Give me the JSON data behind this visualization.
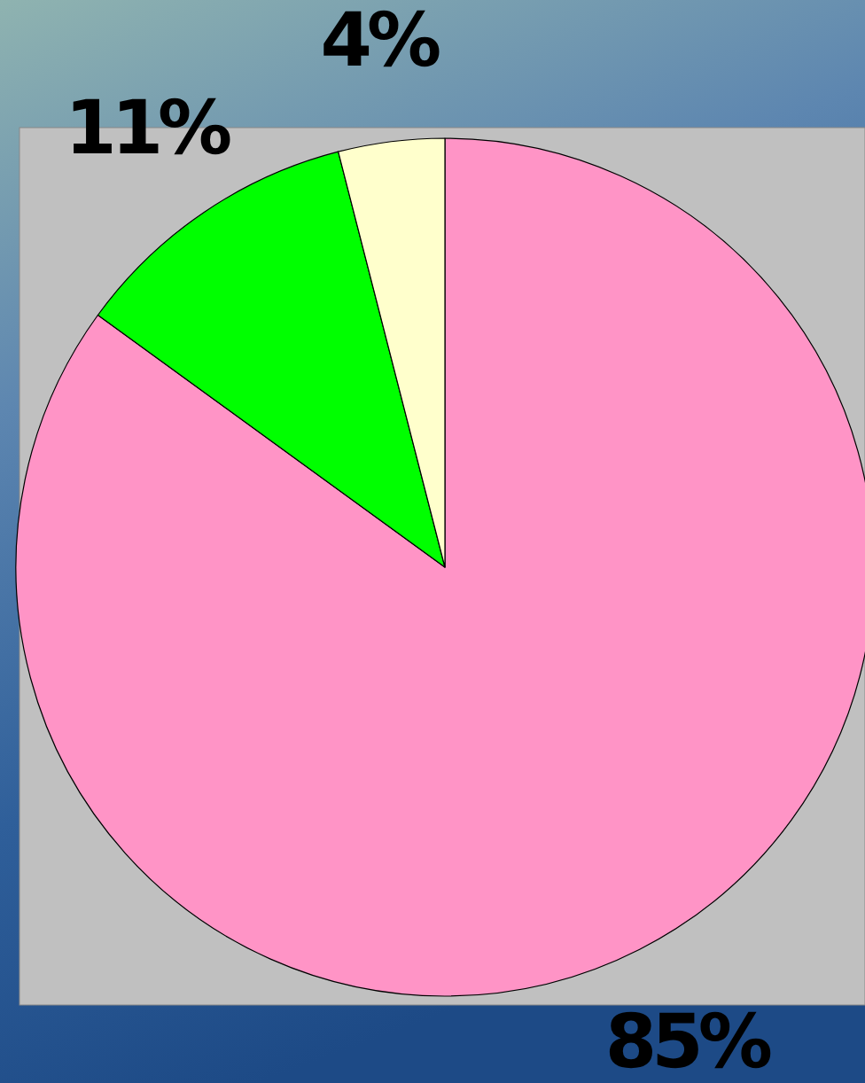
{
  "chart_data": {
    "type": "pie",
    "categories": [
      null,
      null,
      null
    ],
    "values": [
      85,
      11,
      4
    ],
    "colors": [
      "#ff94c6",
      "#00ff00",
      "#ffffcc"
    ],
    "value_labels": [
      "85%",
      "11%",
      "4%"
    ]
  }
}
